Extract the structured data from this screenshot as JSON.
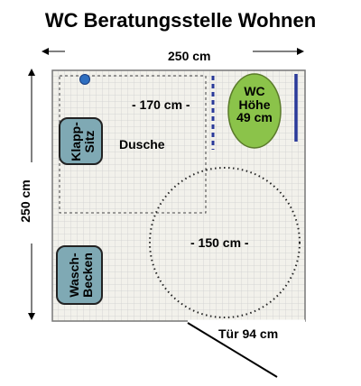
{
  "title": "WC Beratungsstelle Wohnen",
  "dimensions": {
    "width_label": "250 cm",
    "height_label": "250 cm",
    "shower_width_label": "- 170  cm -",
    "circle_label": "- 150 cm -",
    "door_label": "Tür  94 cm"
  },
  "labels": {
    "shower": "Dusche",
    "seat_line1": "Klapp-",
    "seat_line2": "Sitz",
    "sink_line1": "Wasch-",
    "sink_line2": "Becken",
    "wc_line1": "WC",
    "wc_line2": "Höhe",
    "wc_line3": "49 cm"
  },
  "colors": {
    "tile_bg": "#f2f1eb",
    "grout": "#cfcfcf",
    "fixture": "#7fa9b4",
    "wc": "#8bc34a",
    "dashed_blue": "#2a3a9a"
  }
}
